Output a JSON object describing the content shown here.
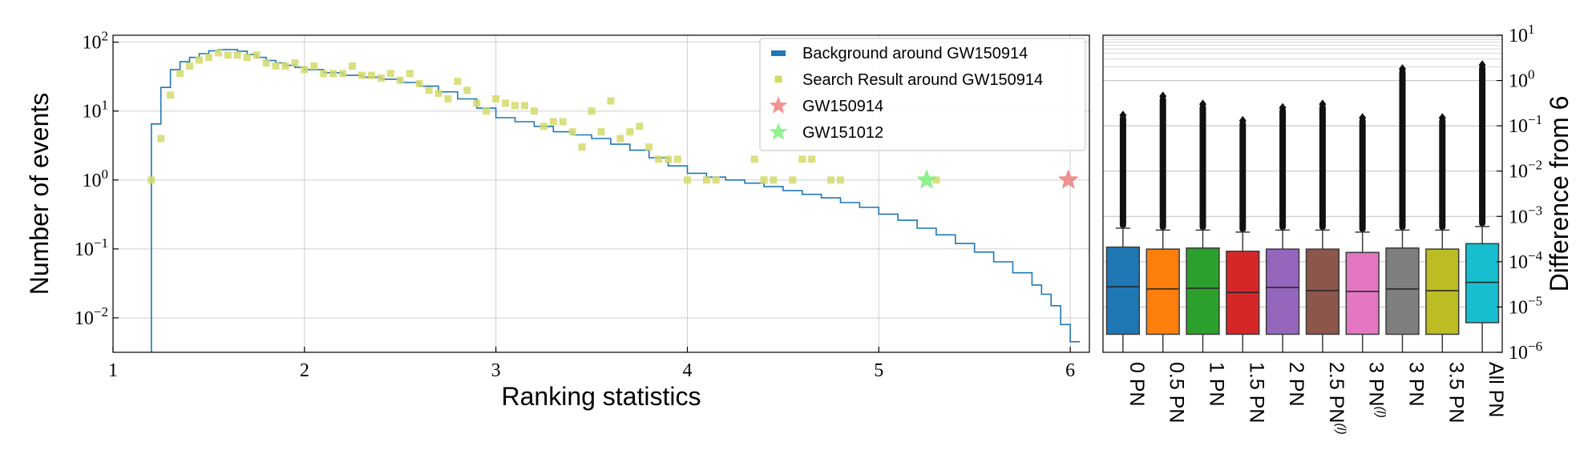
{
  "chart_data": [
    {
      "type": "line",
      "title": "",
      "xlabel": "Ranking statistics",
      "ylabel": "Number of events",
      "xlim": [
        1,
        6.1
      ],
      "ylim_log10": [
        -2.5,
        2.1
      ],
      "y_scale": "log",
      "grid": true,
      "legend_placement": "top-right",
      "x_ticks": [
        1,
        2,
        3,
        4,
        5,
        6
      ],
      "y_ticks": [
        {
          "exp": "2",
          "value": 100
        },
        {
          "exp": "1",
          "value": 10
        },
        {
          "exp": "0",
          "value": 1
        },
        {
          "exp": "−1",
          "value": 0.1
        },
        {
          "exp": "−2",
          "value": 0.01
        }
      ],
      "tick_base": "10",
      "legend": [
        {
          "label": "Background around GW150914",
          "marker": "bar",
          "color": "#1f77b4"
        },
        {
          "label": "Search Result around GW150914",
          "marker": "square",
          "color": "#d4d96a"
        },
        {
          "label": "GW150914",
          "marker": "star",
          "color": "#f08080"
        },
        {
          "label": "GW151012",
          "marker": "star",
          "color": "#7cf07c"
        }
      ],
      "series": [
        {
          "name": "Background around GW150914",
          "style": "step",
          "color": "#1f77b4",
          "x": [
            1.2,
            1.25,
            1.3,
            1.35,
            1.4,
            1.45,
            1.5,
            1.55,
            1.6,
            1.65,
            1.7,
            1.75,
            1.8,
            1.85,
            1.9,
            1.95,
            2.0,
            2.1,
            2.2,
            2.3,
            2.4,
            2.5,
            2.6,
            2.7,
            2.8,
            2.9,
            3.0,
            3.1,
            3.2,
            3.3,
            3.4,
            3.5,
            3.6,
            3.7,
            3.8,
            3.9,
            4.0,
            4.1,
            4.2,
            4.3,
            4.4,
            4.5,
            4.6,
            4.7,
            4.8,
            4.9,
            5.0,
            5.1,
            5.2,
            5.3,
            5.4,
            5.5,
            5.6,
            5.7,
            5.8,
            5.85,
            5.9,
            5.95,
            6.0
          ],
          "y": [
            6.5,
            22,
            40,
            52,
            60,
            68,
            75,
            78,
            78,
            74,
            66,
            60,
            54,
            50,
            46,
            43,
            40,
            36,
            33,
            31,
            29,
            26,
            23,
            19,
            15,
            11,
            8,
            7,
            6,
            5,
            4.5,
            4,
            3.3,
            2.7,
            2.1,
            1.6,
            1.25,
            1.1,
            1.0,
            0.9,
            0.8,
            0.7,
            0.62,
            0.55,
            0.47,
            0.4,
            0.32,
            0.26,
            0.2,
            0.16,
            0.12,
            0.09,
            0.065,
            0.045,
            0.03,
            0.022,
            0.015,
            0.008,
            0.0045
          ]
        },
        {
          "name": "Search Result around GW150914",
          "style": "scatter-square",
          "color": "#d4d96a",
          "x": [
            1.2,
            1.25,
            1.3,
            1.35,
            1.4,
            1.45,
            1.5,
            1.55,
            1.6,
            1.65,
            1.7,
            1.75,
            1.8,
            1.85,
            1.9,
            1.95,
            2.0,
            2.05,
            2.1,
            2.15,
            2.2,
            2.25,
            2.3,
            2.35,
            2.4,
            2.45,
            2.5,
            2.55,
            2.6,
            2.65,
            2.7,
            2.75,
            2.8,
            2.85,
            2.9,
            2.95,
            3.0,
            3.05,
            3.1,
            3.15,
            3.2,
            3.25,
            3.3,
            3.35,
            3.4,
            3.45,
            3.5,
            3.55,
            3.6,
            3.65,
            3.7,
            3.75,
            3.8,
            3.85,
            3.9,
            3.95,
            4.0,
            4.1,
            4.15,
            4.35,
            4.4,
            4.45,
            4.55,
            4.6,
            4.65,
            4.75,
            4.8,
            5.3
          ],
          "y": [
            1,
            4,
            17,
            35,
            45,
            55,
            60,
            70,
            65,
            65,
            60,
            65,
            50,
            45,
            45,
            50,
            40,
            45,
            35,
            35,
            35,
            45,
            33,
            33,
            30,
            35,
            28,
            35,
            25,
            20,
            18,
            15,
            27,
            20,
            13,
            10,
            15,
            13,
            12,
            12,
            10,
            6,
            7,
            7,
            5,
            3,
            10,
            5,
            14,
            4,
            5,
            6,
            3,
            2,
            2,
            2,
            1,
            1,
            1,
            2,
            1,
            1,
            1,
            2,
            2,
            1,
            1,
            1
          ]
        },
        {
          "name": "GW150914",
          "style": "star",
          "color": "#f08080",
          "x": [
            5.99
          ],
          "y": [
            1
          ]
        },
        {
          "name": "GW151012",
          "style": "star",
          "color": "#7cf07c",
          "x": [
            5.25
          ],
          "y": [
            1
          ]
        }
      ]
    },
    {
      "type": "box",
      "title": "",
      "xlabel": "",
      "ylabel": "Difference from 6",
      "y_scale": "log",
      "ylim_log10": [
        -6,
        1
      ],
      "grid": true,
      "y_ticks": [
        {
          "exp": "1",
          "value": 10
        },
        {
          "exp": "0",
          "value": 1
        },
        {
          "exp": "−1",
          "value": 0.1
        },
        {
          "exp": "−2",
          "value": 0.01
        },
        {
          "exp": "−3",
          "value": 0.001
        },
        {
          "exp": "−4",
          "value": 0.0001
        },
        {
          "exp": "−5",
          "value": 1e-05
        },
        {
          "exp": "−6",
          "value": 1e-06
        }
      ],
      "tick_base": "10",
      "categories": [
        {
          "label": "0 PN",
          "sup": ""
        },
        {
          "label": "0.5 PN",
          "sup": ""
        },
        {
          "label": "1 PN",
          "sup": ""
        },
        {
          "label": "1.5 PN",
          "sup": ""
        },
        {
          "label": "2 PN",
          "sup": ""
        },
        {
          "label": "2.5 PN",
          "sup": "(l)"
        },
        {
          "label": "3 PN",
          "sup": "(l)"
        },
        {
          "label": "3 PN",
          "sup": ""
        },
        {
          "label": "3.5 PN",
          "sup": ""
        },
        {
          "label": "All PN",
          "sup": ""
        }
      ],
      "boxes": [
        {
          "color": "#1f77b4",
          "q1": 2.5e-06,
          "median": 2.8e-05,
          "q3": 0.00021,
          "whisker_low": 1e-06,
          "whisker_high": 0.00055,
          "outlier_max": 0.17
        },
        {
          "color": "#ff7f0e",
          "q1": 2.5e-06,
          "median": 2.5e-05,
          "q3": 0.00019,
          "whisker_low": 1e-06,
          "whisker_high": 0.0005,
          "outlier_max": 0.45
        },
        {
          "color": "#2ca02c",
          "q1": 2.5e-06,
          "median": 2.6e-05,
          "q3": 0.0002,
          "whisker_low": 1e-06,
          "whisker_high": 0.0005,
          "outlier_max": 0.3
        },
        {
          "color": "#d62728",
          "q1": 2.5e-06,
          "median": 2.1e-05,
          "q3": 0.00017,
          "whisker_low": 1e-06,
          "whisker_high": 0.00045,
          "outlier_max": 0.13
        },
        {
          "color": "#9467bd",
          "q1": 2.5e-06,
          "median": 2.7e-05,
          "q3": 0.00019,
          "whisker_low": 1e-06,
          "whisker_high": 0.0005,
          "outlier_max": 0.25
        },
        {
          "color": "#8c564b",
          "q1": 2.5e-06,
          "median": 2.3e-05,
          "q3": 0.00019,
          "whisker_low": 1e-06,
          "whisker_high": 0.0005,
          "outlier_max": 0.3
        },
        {
          "color": "#e377c2",
          "q1": 2.5e-06,
          "median": 2.2e-05,
          "q3": 0.00016,
          "whisker_low": 1e-06,
          "whisker_high": 0.00045,
          "outlier_max": 0.15
        },
        {
          "color": "#7f7f7f",
          "q1": 2.5e-06,
          "median": 2.5e-05,
          "q3": 0.0002,
          "whisker_low": 1e-06,
          "whisker_high": 0.0005,
          "outlier_max": 1.8
        },
        {
          "color": "#bcbd22",
          "q1": 2.5e-06,
          "median": 2.3e-05,
          "q3": 0.00019,
          "whisker_low": 1e-06,
          "whisker_high": 0.0005,
          "outlier_max": 0.15
        },
        {
          "color": "#17becf",
          "q1": 4.5e-06,
          "median": 3.5e-05,
          "q3": 0.00025,
          "whisker_low": 1e-06,
          "whisker_high": 0.0006,
          "outlier_max": 2.2
        }
      ]
    }
  ]
}
